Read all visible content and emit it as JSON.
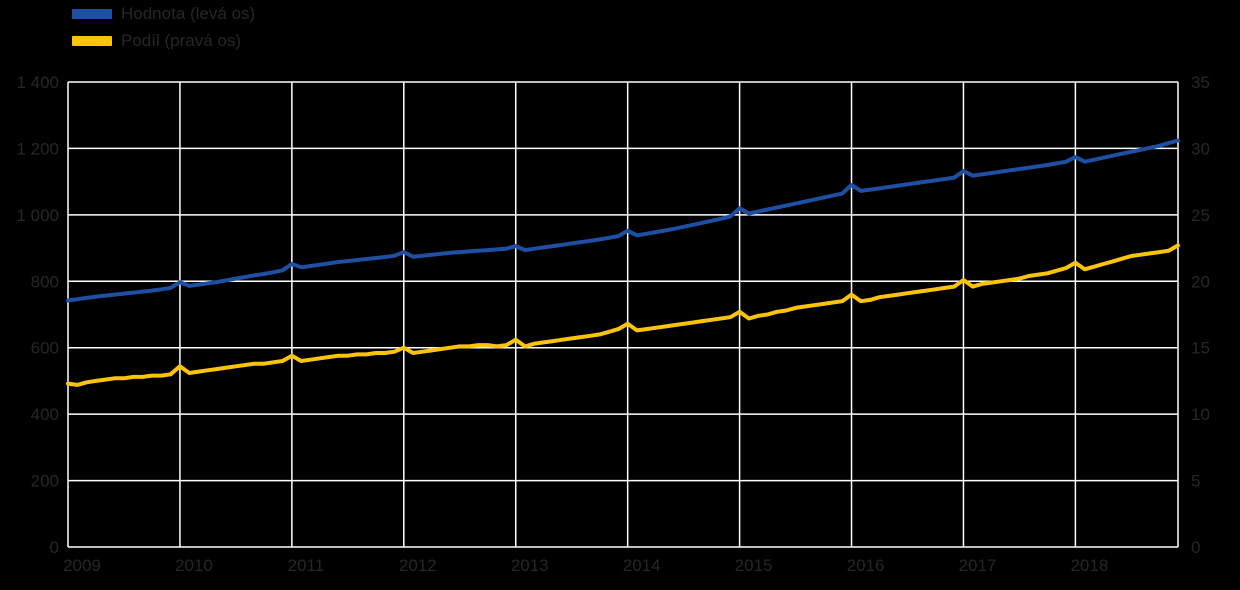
{
  "colors": {
    "background": "#000000",
    "grid": "#ffffff",
    "text": "#262626",
    "series_left": "#1e4fa3",
    "series_right": "#fcc30b"
  },
  "legend": {
    "items": [
      {
        "label": "Hodnota (levá os)",
        "color": "#1e4fa3"
      },
      {
        "label": "Podíl (pravá os)",
        "color": "#fcc30b"
      }
    ]
  },
  "chart_data": {
    "type": "line",
    "title": "",
    "x_unit": "month",
    "x_start": "2009-01",
    "x_end": "2018-12",
    "x_tick_labels": [
      "2009",
      "2010",
      "2011",
      "2012",
      "2013",
      "2014",
      "2015",
      "2016",
      "2017",
      "2018"
    ],
    "grid": true,
    "legend_position": "top-left",
    "left_axis": {
      "min": 0,
      "max": 1400,
      "ticks": [
        "0",
        "200",
        "400",
        "600",
        "800",
        "1 000",
        "1 200",
        "1 400"
      ]
    },
    "right_axis": {
      "min": 0,
      "max": 35,
      "ticks": [
        "0",
        "5",
        "10",
        "15",
        "20",
        "25",
        "30",
        "35"
      ]
    },
    "series": [
      {
        "name": "Hodnota (levá os)",
        "axis": "left",
        "color": "#1e4fa3",
        "values": [
          742,
          746,
          750,
          754,
          757,
          760,
          763,
          766,
          769,
          772,
          776,
          780,
          797,
          786,
          790,
          794,
          798,
          803,
          808,
          813,
          818,
          822,
          827,
          833,
          852,
          842,
          846,
          850,
          854,
          858,
          861,
          864,
          867,
          870,
          873,
          877,
          888,
          874,
          877,
          880,
          883,
          886,
          888,
          890,
          892,
          894,
          896,
          898,
          906,
          894,
          898,
          902,
          906,
          910,
          914,
          918,
          922,
          926,
          931,
          936,
          952,
          938,
          943,
          948,
          953,
          958,
          964,
          970,
          976,
          982,
          988,
          995,
          1020,
          1004,
          1010,
          1016,
          1022,
          1028,
          1034,
          1040,
          1046,
          1052,
          1058,
          1064,
          1090,
          1072,
          1076,
          1080,
          1084,
          1088,
          1092,
          1096,
          1100,
          1104,
          1108,
          1112,
          1132,
          1118,
          1122,
          1126,
          1130,
          1134,
          1138,
          1142,
          1146,
          1150,
          1155,
          1160,
          1174,
          1160,
          1166,
          1172,
          1178,
          1184,
          1190,
          1196,
          1202,
          1208,
          1216,
          1224
        ]
      },
      {
        "name": "Podíl (pravá os)",
        "axis": "right",
        "color": "#fcc30b",
        "values": [
          12.3,
          12.2,
          12.4,
          12.5,
          12.6,
          12.7,
          12.7,
          12.8,
          12.8,
          12.9,
          12.9,
          13.0,
          13.6,
          13.1,
          13.2,
          13.3,
          13.4,
          13.5,
          13.6,
          13.7,
          13.8,
          13.8,
          13.9,
          14.0,
          14.4,
          14.0,
          14.1,
          14.2,
          14.3,
          14.4,
          14.4,
          14.5,
          14.5,
          14.6,
          14.6,
          14.7,
          15.0,
          14.6,
          14.7,
          14.8,
          14.9,
          15.0,
          15.1,
          15.1,
          15.2,
          15.2,
          15.1,
          15.2,
          15.6,
          15.1,
          15.3,
          15.4,
          15.5,
          15.6,
          15.7,
          15.8,
          15.9,
          16.0,
          16.2,
          16.4,
          16.8,
          16.3,
          16.4,
          16.5,
          16.6,
          16.7,
          16.8,
          16.9,
          17.0,
          17.1,
          17.2,
          17.3,
          17.7,
          17.2,
          17.4,
          17.5,
          17.7,
          17.8,
          18.0,
          18.1,
          18.2,
          18.3,
          18.4,
          18.5,
          19.0,
          18.5,
          18.6,
          18.8,
          18.9,
          19.0,
          19.1,
          19.2,
          19.3,
          19.4,
          19.5,
          19.6,
          20.1,
          19.6,
          19.8,
          19.9,
          20.0,
          20.1,
          20.2,
          20.4,
          20.5,
          20.6,
          20.8,
          21.0,
          21.4,
          20.9,
          21.1,
          21.3,
          21.5,
          21.7,
          21.9,
          22.0,
          22.1,
          22.2,
          22.3,
          22.7
        ]
      }
    ]
  }
}
